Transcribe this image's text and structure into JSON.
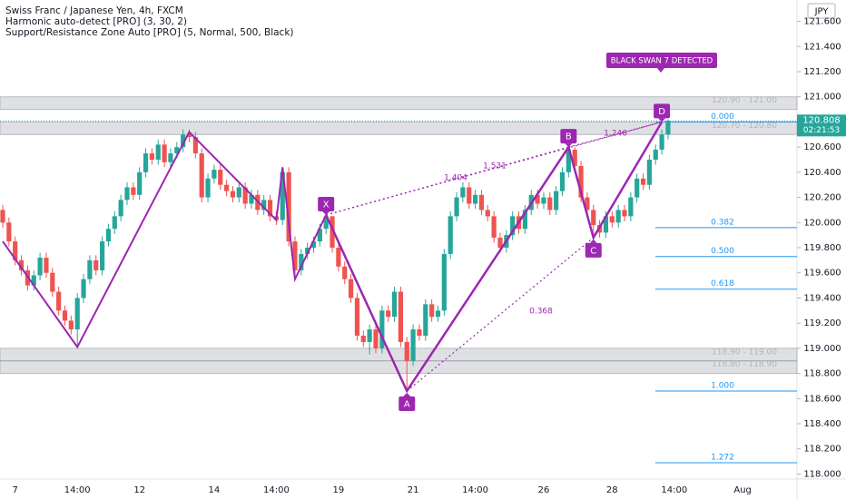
{
  "chart_data": {
    "type": "candlestick",
    "title": "Swiss Franc / Japanese Yen, 4h, FXCM",
    "indicators": [
      "Harmonic auto-detect [PRO] (3, 30, 2)",
      "Support/Resistance Zone Auto [PRO] (5, Normal, 500, Black)"
    ],
    "currency": "JPY",
    "up_color": "#26a69a",
    "down_color": "#ef5350",
    "pattern_color": "#9c27b0",
    "fib_color": "#2196f3",
    "categories": [
      null,
      null,
      "7",
      null,
      null,
      null,
      null,
      null,
      null,
      null,
      null,
      null,
      "14:00",
      null,
      null,
      null,
      null,
      null,
      null,
      null,
      null,
      null,
      "12",
      null,
      null,
      null,
      null,
      null,
      null,
      null,
      null,
      null,
      null,
      null,
      "14",
      null,
      null,
      null,
      null,
      null,
      null,
      null,
      null,
      null,
      "14:00",
      null,
      null,
      null,
      null,
      null,
      null,
      null,
      null,
      null,
      "19",
      null,
      null,
      null,
      null,
      null,
      null,
      null,
      null,
      null,
      null,
      null,
      "21",
      null,
      null,
      null,
      null,
      null,
      null,
      null,
      null,
      null,
      "14:00",
      null,
      null,
      null,
      null,
      null,
      null,
      null,
      null,
      null,
      null,
      "26",
      null,
      null,
      null,
      null,
      null,
      null,
      null,
      null,
      null,
      null,
      "28",
      null,
      null,
      null,
      null,
      null,
      null,
      null,
      null,
      null,
      "14:00",
      null,
      null,
      null,
      null,
      null,
      null,
      null,
      null,
      null,
      null,
      "Aug"
    ],
    "candles": [
      [
        120.1,
        120.14,
        119.96,
        120.0
      ],
      [
        120.0,
        120.04,
        119.81,
        119.85
      ],
      [
        119.85,
        119.89,
        119.66,
        119.7
      ],
      [
        119.7,
        119.74,
        119.58,
        119.62
      ],
      [
        119.62,
        119.66,
        119.46,
        119.5
      ],
      [
        119.5,
        119.62,
        119.46,
        119.58
      ],
      [
        119.58,
        119.76,
        119.54,
        119.72
      ],
      [
        119.72,
        119.76,
        119.56,
        119.6
      ],
      [
        119.6,
        119.64,
        119.41,
        119.45
      ],
      [
        119.45,
        119.49,
        119.26,
        119.3
      ],
      [
        119.3,
        119.34,
        119.18,
        119.22
      ],
      [
        119.22,
        119.26,
        119.11,
        119.15
      ],
      [
        119.15,
        119.44,
        119.01,
        119.4
      ],
      [
        119.4,
        119.59,
        119.36,
        119.55
      ],
      [
        119.55,
        119.74,
        119.51,
        119.7
      ],
      [
        119.7,
        119.74,
        119.58,
        119.62
      ],
      [
        119.62,
        119.89,
        119.58,
        119.85
      ],
      [
        119.85,
        119.99,
        119.81,
        119.95
      ],
      [
        119.95,
        120.09,
        119.91,
        120.05
      ],
      [
        120.05,
        120.22,
        120.01,
        120.18
      ],
      [
        120.18,
        120.32,
        120.14,
        120.28
      ],
      [
        120.28,
        120.32,
        120.18,
        120.22
      ],
      [
        120.22,
        120.44,
        120.18,
        120.4
      ],
      [
        120.4,
        120.59,
        120.36,
        120.55
      ],
      [
        120.55,
        120.59,
        120.46,
        120.5
      ],
      [
        120.5,
        120.66,
        120.46,
        120.62
      ],
      [
        120.62,
        120.66,
        120.44,
        120.48
      ],
      [
        120.48,
        120.59,
        120.44,
        120.55
      ],
      [
        120.55,
        120.64,
        120.51,
        120.6
      ],
      [
        120.6,
        120.74,
        120.56,
        120.7
      ],
      [
        120.7,
        120.74,
        120.64,
        120.68
      ],
      [
        120.68,
        120.72,
        120.51,
        120.55
      ],
      [
        120.55,
        120.59,
        120.16,
        120.2
      ],
      [
        120.2,
        120.39,
        120.16,
        120.35
      ],
      [
        120.35,
        120.46,
        120.31,
        120.42
      ],
      [
        120.42,
        120.46,
        120.26,
        120.3
      ],
      [
        120.3,
        120.34,
        120.21,
        120.25
      ],
      [
        120.25,
        120.29,
        120.16,
        120.2
      ],
      [
        120.2,
        120.32,
        120.16,
        120.28
      ],
      [
        120.28,
        120.32,
        120.11,
        120.15
      ],
      [
        120.15,
        120.26,
        120.11,
        120.22
      ],
      [
        120.22,
        120.26,
        120.06,
        120.1
      ],
      [
        120.1,
        120.22,
        120.06,
        120.18
      ],
      [
        120.18,
        120.22,
        120.01,
        120.05
      ],
      [
        120.05,
        120.09,
        119.98,
        120.02
      ],
      [
        120.02,
        120.44,
        119.98,
        120.4
      ],
      [
        120.4,
        120.44,
        119.81,
        119.85
      ],
      [
        119.85,
        119.89,
        119.55,
        119.62
      ],
      [
        119.62,
        119.79,
        119.58,
        119.75
      ],
      [
        119.75,
        119.84,
        119.71,
        119.8
      ],
      [
        119.8,
        119.89,
        119.76,
        119.85
      ],
      [
        119.85,
        119.99,
        119.81,
        119.95
      ],
      [
        119.95,
        120.06,
        119.91,
        120.05
      ],
      [
        120.05,
        120.05,
        119.76,
        119.8
      ],
      [
        119.8,
        119.84,
        119.61,
        119.65
      ],
      [
        119.65,
        119.69,
        119.51,
        119.55
      ],
      [
        119.55,
        119.59,
        119.36,
        119.4
      ],
      [
        119.4,
        119.44,
        119.06,
        119.1
      ],
      [
        119.1,
        119.14,
        119.01,
        119.05
      ],
      [
        119.05,
        119.19,
        118.95,
        119.15
      ],
      [
        119.15,
        119.19,
        118.96,
        119.0
      ],
      [
        119.0,
        119.34,
        118.96,
        119.3
      ],
      [
        119.3,
        119.34,
        119.21,
        119.25
      ],
      [
        119.25,
        119.49,
        119.21,
        119.45
      ],
      [
        119.45,
        119.49,
        119.01,
        119.05
      ],
      [
        119.05,
        119.09,
        118.66,
        118.9
      ],
      [
        118.9,
        119.19,
        118.86,
        119.15
      ],
      [
        119.15,
        119.19,
        119.06,
        119.1
      ],
      [
        119.1,
        119.39,
        119.06,
        119.35
      ],
      [
        119.35,
        119.39,
        119.21,
        119.25
      ],
      [
        119.25,
        119.34,
        119.21,
        119.3
      ],
      [
        119.3,
        119.79,
        119.26,
        119.75
      ],
      [
        119.75,
        120.09,
        119.71,
        120.05
      ],
      [
        120.05,
        120.24,
        120.01,
        120.2
      ],
      [
        120.2,
        120.32,
        120.16,
        120.28
      ],
      [
        120.28,
        120.32,
        120.11,
        120.15
      ],
      [
        120.15,
        120.26,
        120.11,
        120.22
      ],
      [
        120.22,
        120.26,
        120.06,
        120.1
      ],
      [
        120.1,
        120.14,
        120.01,
        120.05
      ],
      [
        120.05,
        120.09,
        119.84,
        119.88
      ],
      [
        119.88,
        119.92,
        119.76,
        119.8
      ],
      [
        119.8,
        119.94,
        119.76,
        119.9
      ],
      [
        119.9,
        120.09,
        119.86,
        120.05
      ],
      [
        120.05,
        120.09,
        119.91,
        119.95
      ],
      [
        119.95,
        120.14,
        119.91,
        120.1
      ],
      [
        120.1,
        120.26,
        120.06,
        120.22
      ],
      [
        120.22,
        120.26,
        120.11,
        120.15
      ],
      [
        120.15,
        120.24,
        120.11,
        120.2
      ],
      [
        120.2,
        120.24,
        120.06,
        120.1
      ],
      [
        120.1,
        120.29,
        120.06,
        120.25
      ],
      [
        120.25,
        120.44,
        120.21,
        120.4
      ],
      [
        120.4,
        120.6,
        120.36,
        120.58
      ],
      [
        120.58,
        120.6,
        120.41,
        120.45
      ],
      [
        120.45,
        120.49,
        120.16,
        120.2
      ],
      [
        120.2,
        120.24,
        120.06,
        120.1
      ],
      [
        120.1,
        120.14,
        119.88,
        119.98
      ],
      [
        119.98,
        120.02,
        119.88,
        119.92
      ],
      [
        119.92,
        120.09,
        119.88,
        120.05
      ],
      [
        120.05,
        120.09,
        119.96,
        120.0
      ],
      [
        120.0,
        120.14,
        119.96,
        120.1
      ],
      [
        120.1,
        120.14,
        120.01,
        120.05
      ],
      [
        120.05,
        120.24,
        120.01,
        120.2
      ],
      [
        120.2,
        120.39,
        120.16,
        120.35
      ],
      [
        120.35,
        120.39,
        120.26,
        120.3
      ],
      [
        120.3,
        120.54,
        120.26,
        120.5
      ],
      [
        120.5,
        120.62,
        120.46,
        120.58
      ],
      [
        120.58,
        120.74,
        120.54,
        120.7
      ],
      [
        120.7,
        120.82,
        120.66,
        120.81
      ],
      null,
      null,
      null,
      null,
      null,
      null,
      null,
      null,
      null,
      null,
      null,
      null
    ],
    "ylim": [
      117.96,
      121.77
    ],
    "yticks": [
      {
        "value": 121.6,
        "label": "121.600"
      },
      {
        "value": 121.4,
        "label": "121.400"
      },
      {
        "value": 121.2,
        "label": "121.200"
      },
      {
        "value": 121.0,
        "label": "121.000"
      },
      {
        "value": 120.8,
        "label": "120.800"
      },
      {
        "value": 120.6,
        "label": "120.600"
      },
      {
        "value": 120.4,
        "label": "120.400"
      },
      {
        "value": 120.2,
        "label": "120.200"
      },
      {
        "value": 120.0,
        "label": "120.000"
      },
      {
        "value": 119.8,
        "label": "119.800"
      },
      {
        "value": 119.6,
        "label": "119.600"
      },
      {
        "value": 119.4,
        "label": "119.400"
      },
      {
        "value": 119.2,
        "label": "119.200"
      },
      {
        "value": 119.0,
        "label": "119.000"
      },
      {
        "value": 118.8,
        "label": "118.800"
      },
      {
        "value": 118.6,
        "label": "118.600"
      },
      {
        "value": 118.4,
        "label": "118.400"
      },
      {
        "value": 118.2,
        "label": "118.200"
      },
      {
        "value": 118.0,
        "label": "118.000"
      }
    ],
    "last_price": {
      "value": 120.808,
      "label": "120.808"
    },
    "countdown": "02:21:53",
    "zones": [
      {
        "low": 120.9,
        "high": 121.0,
        "label": "120.90 - 121.00"
      },
      {
        "low": 120.7,
        "high": 120.8,
        "label": "120.70 - 120.80"
      },
      {
        "low": 118.9,
        "high": 119.0,
        "label": "118.90 - 119.00"
      },
      {
        "low": 118.8,
        "high": 118.9,
        "label": "118.80 - 118.90"
      }
    ],
    "fib_levels": [
      {
        "ratio": "0.000",
        "price": 120.8
      },
      {
        "ratio": "0.382",
        "price": 119.96
      },
      {
        "ratio": "0.500",
        "price": 119.73
      },
      {
        "ratio": "0.618",
        "price": 119.47
      },
      {
        "ratio": "1.000",
        "price": 118.66
      },
      {
        "ratio": "1.272",
        "price": 118.09
      }
    ],
    "zigzag": {
      "bars": [
        0,
        12,
        30,
        44,
        45,
        47,
        52
      ],
      "prices": [
        119.85,
        119.01,
        120.72,
        120.02,
        120.44,
        119.55,
        120.06
      ]
    },
    "pattern_points": [
      {
        "label": "X",
        "bar": 52,
        "price": 120.06
      },
      {
        "label": "A",
        "bar": 65,
        "price": 118.66
      },
      {
        "label": "B",
        "bar": 91,
        "price": 120.6
      },
      {
        "label": "C",
        "bar": 95,
        "price": 119.88
      },
      {
        "label": "D",
        "bar": 106,
        "price": 120.8
      }
    ],
    "ratios": [
      "1.404",
      "1.531",
      "1.246",
      "0.368"
    ],
    "alert": "BLACK SWAN 7 DETECTED"
  }
}
